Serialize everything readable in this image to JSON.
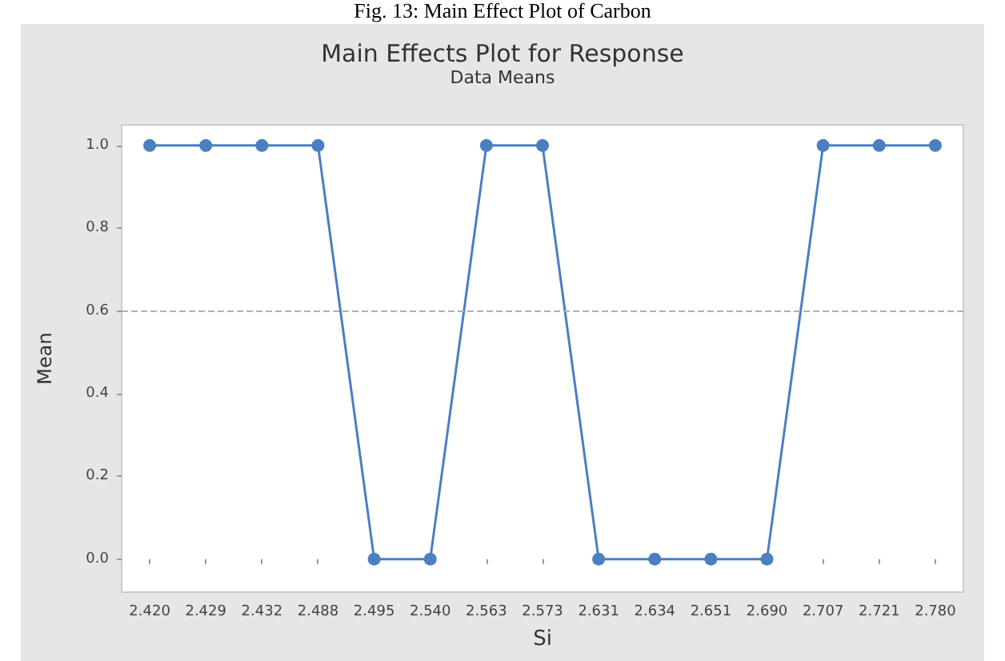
{
  "chart_data": {
    "type": "line",
    "title": "Main Effects Plot for Response",
    "subtitle": "Data Means",
    "xlabel": "Si",
    "ylabel": "Mean",
    "annotations": [
      "Fig. 13: Main Effect Plot of Carbon"
    ],
    "categories": [
      "2.420",
      "2.429",
      "2.432",
      "2.488",
      "2.495",
      "2.540",
      "2.563",
      "2.573",
      "2.631",
      "2.634",
      "2.651",
      "2.690",
      "2.707",
      "2.721",
      "2.780"
    ],
    "series": [
      {
        "color": "#4a7fc1",
        "values": [
          1,
          1,
          1,
          1,
          0,
          0,
          1,
          1,
          0,
          0,
          0,
          0,
          1,
          1,
          1
        ]
      }
    ],
    "ylim": [
      -0.08,
      1.05
    ],
    "yticks": [
      {
        "value": 0,
        "label": "0.0"
      },
      {
        "value": 0.2,
        "label": "0.2"
      },
      {
        "value": 0.4,
        "label": "0.4"
      },
      {
        "value": 0.6,
        "label": "0.6"
      },
      {
        "value": 0.8,
        "label": "0.8"
      },
      {
        "value": 1,
        "label": "1.0"
      }
    ],
    "ref_lines": [
      {
        "axis": "y",
        "value": 0.6,
        "label": null,
        "color": "#b0b0b0",
        "line_style": "dashed"
      }
    ],
    "grid": false,
    "marker": "circle",
    "line_style": "solid"
  }
}
